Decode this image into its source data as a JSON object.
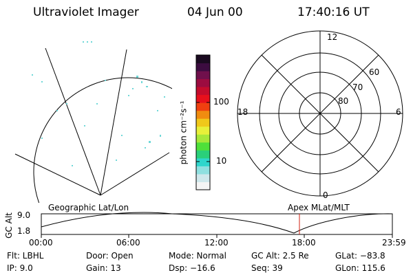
{
  "header": {
    "title": "Ultraviolet Imager",
    "date": "04 Jun 00",
    "time": "17:40:16 UT"
  },
  "colorbar": {
    "unit_label": "photon cm⁻²s⁻¹",
    "ticks": [
      "100",
      "10"
    ],
    "colors": [
      "#f5f5f5",
      "#cfe8ec",
      "#8fe0e0",
      "#2fd6cc",
      "#2ad07a",
      "#4fe03a",
      "#a8e83a",
      "#e8f03a",
      "#f0c81a",
      "#f08c10",
      "#f04010",
      "#e8101c",
      "#c40c2c",
      "#9c0c40",
      "#70104c",
      "#3c0c40",
      "#1a0a20"
    ]
  },
  "polar": {
    "mlt_labels": {
      "top": "12",
      "left": "18",
      "right": "6",
      "bottom": "0"
    },
    "lat_labels": [
      "60",
      "70",
      "80"
    ]
  },
  "timeline": {
    "left_title": "Geographic Lat/Lon",
    "right_title": "Apex MLat/MLT",
    "axis_label": "GC Alt",
    "y_ticks": [
      "9.0",
      "1.8"
    ],
    "x_ticks": [
      "00:00",
      "06:00",
      "12:00",
      "18:00",
      "23:59"
    ],
    "current_marker_color": "#d02010"
  },
  "info": {
    "flt": "Flt: LBHL",
    "ip": "IP:  9.0",
    "door": "Door: Open",
    "gain": "Gain: 13",
    "mode": "Mode: Normal",
    "dsp": "Dsp:  −16.6",
    "gcalt": "GC Alt: 2.5 Re",
    "seq": "Seq: 39",
    "glat": "GLat: −83.8",
    "glon": "GLon: 115.6"
  }
}
